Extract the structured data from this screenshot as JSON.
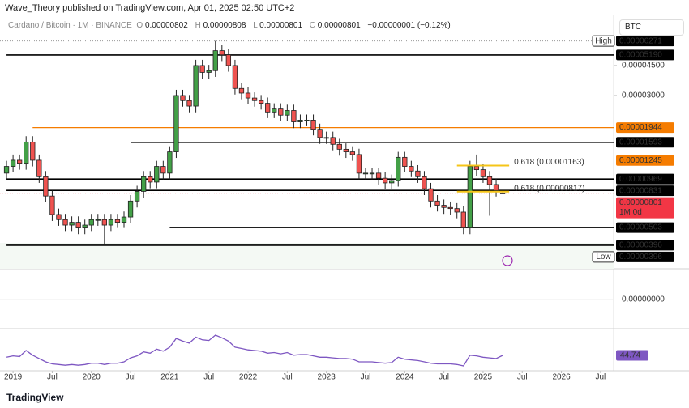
{
  "header": {
    "published": "Wave_Theory published on TradingView.com, Apr 01, 2025 02:50 UTC+2",
    "symbol_box": "BTC",
    "brand": "TradingView"
  },
  "chart_data": {
    "type": "candlestick",
    "legend": {
      "symbol": "Cardano / Bitcoin · 1M · BINANCE",
      "change": "−0.00000001 (−0.12%)"
    },
    "x": [
      "2018-12",
      "2019-01",
      "2019-02",
      "2019-03",
      "2019-04",
      "2019-05",
      "2019-06",
      "2019-07",
      "2019-08",
      "2019-09",
      "2019-10",
      "2019-11",
      "2019-12",
      "2020-01",
      "2020-02",
      "2020-03",
      "2020-04",
      "2020-05",
      "2020-06",
      "2020-07",
      "2020-08",
      "2020-09",
      "2020-10",
      "2020-11",
      "2020-12",
      "2021-01",
      "2021-02",
      "2021-03",
      "2021-04",
      "2021-05",
      "2021-06",
      "2021-07",
      "2021-08",
      "2021-09",
      "2021-10",
      "2021-11",
      "2021-12",
      "2022-01",
      "2022-02",
      "2022-03",
      "2022-04",
      "2022-05",
      "2022-06",
      "2022-07",
      "2022-08",
      "2022-09",
      "2022-10",
      "2022-11",
      "2022-12",
      "2023-01",
      "2023-02",
      "2023-03",
      "2023-04",
      "2023-05",
      "2023-06",
      "2023-07",
      "2023-08",
      "2023-09",
      "2023-10",
      "2023-11",
      "2023-12",
      "2024-01",
      "2024-02",
      "2024-03",
      "2024-04",
      "2024-05",
      "2024-06",
      "2024-07",
      "2024-08",
      "2024-09",
      "2024-10",
      "2024-11",
      "2024-12",
      "2025-01",
      "2025-02",
      "2025-03",
      "2025-04"
    ],
    "open": [
      1.05e-05,
      1.15e-05,
      1.25e-05,
      1.2e-05,
      1.6e-05,
      1.25e-05,
      1e-05,
      7.7e-06,
      6e-06,
      5.6e-06,
      5.2e-06,
      5.4e-06,
      5e-06,
      5.2e-06,
      5.6e-06,
      5.6e-06,
      5.2e-06,
      5.6e-06,
      5.4e-06,
      5.8e-06,
      7.2e-06,
      8.2e-06,
      1e-05,
      9.3e-06,
      1.15e-05,
      1.05e-05,
      1.4e-05,
      3e-05,
      2.8e-05,
      2.6e-05,
      4.5e-05,
      4.1e-05,
      4.2e-05,
      5.5e-05,
      5.2e-05,
      4.5e-05,
      3.3e-05,
      3.1e-05,
      2.9e-05,
      2.8e-05,
      2.7e-05,
      2.4e-05,
      2.5e-05,
      2.3e-05,
      2.45e-05,
      2.1e-05,
      2.15e-05,
      2.15e-05,
      1.9e-05,
      1.7e-05,
      1.7e-05,
      1.55e-05,
      1.45e-05,
      1.4e-05,
      1.35e-05,
      1.05e-05,
      1.05e-05,
      1.05e-05,
      9.8e-06,
      9.2e-06,
      9.5e-06,
      1.3e-05,
      1.15e-05,
      1.08e-05,
      1e-05,
      8.5e-06,
      7.2e-06,
      6.8e-06,
      6.6e-06,
      6.5e-06,
      6.2e-06,
      5e-06,
      1.15e-05,
      1.1e-05,
      1e-05,
      9e-06,
      8.02e-06
    ],
    "high": [
      1.24e-05,
      1.35e-05,
      1.35e-05,
      1.73e-05,
      1.73e-05,
      1.35e-05,
      1.08e-05,
      8.3e-06,
      6.5e-06,
      6.05e-06,
      5.85e-06,
      5.85e-06,
      5.6e-06,
      6.05e-06,
      6.05e-06,
      6.05e-06,
      6.05e-06,
      6.05e-06,
      6.25e-06,
      7.8e-06,
      8.85e-06,
      1.08e-05,
      1.08e-05,
      1.24e-05,
      1.24e-05,
      1.51e-05,
      3.24e-05,
      3.24e-05,
      3.02e-05,
      4.86e-05,
      4.86e-05,
      4.54e-05,
      6.271e-05,
      5.94e-05,
      5.62e-05,
      4.86e-05,
      3.56e-05,
      3.35e-05,
      3.13e-05,
      3.02e-05,
      2.92e-05,
      2.7e-05,
      2.7e-05,
      2.65e-05,
      2.65e-05,
      2.32e-05,
      2.32e-05,
      2.32e-05,
      2.05e-05,
      1.84e-05,
      1.84e-05,
      1.67e-05,
      1.57e-05,
      1.51e-05,
      1.46e-05,
      1.13e-05,
      1.13e-05,
      1.13e-05,
      1.06e-05,
      1.03e-05,
      1.4e-05,
      1.4e-05,
      1.24e-05,
      1.17e-05,
      1.08e-05,
      9.2e-06,
      7.8e-06,
      7.35e-06,
      7.15e-06,
      7e-06,
      6.7e-06,
      1.24e-05,
      1.35e-05,
      1.19e-05,
      1.08e-05,
      9.7e-06,
      8.08e-06
    ],
    "low": [
      9.7e-06,
      1.06e-05,
      1.1e-05,
      1.1e-05,
      1.15e-05,
      9.2e-06,
      7.1e-06,
      5.5e-06,
      5.15e-06,
      4.8e-06,
      4.8e-06,
      4.6e-06,
      4.6e-06,
      4.8e-06,
      5.15e-06,
      3.96e-06,
      4.8e-06,
      5e-06,
      5e-06,
      5.35e-06,
      6.6e-06,
      7.55e-06,
      8.55e-06,
      8.55e-06,
      9.65e-06,
      9.65e-06,
      1.29e-05,
      2.58e-05,
      2.39e-05,
      2.39e-05,
      3.77e-05,
      3.77e-05,
      3.86e-05,
      4.78e-05,
      4.14e-05,
      3.04e-05,
      2.85e-05,
      2.67e-05,
      2.58e-05,
      2.48e-05,
      2.21e-05,
      2.21e-05,
      2.12e-05,
      2.12e-05,
      1.93e-05,
      1.93e-05,
      1.98e-05,
      1.75e-05,
      1.56e-05,
      1.56e-05,
      1.43e-05,
      1.33e-05,
      1.29e-05,
      1.24e-05,
      9.65e-06,
      9.65e-06,
      9.65e-06,
      9e-06,
      8.45e-06,
      8.45e-06,
      8.75e-06,
      1.06e-05,
      9.95e-06,
      9.2e-06,
      7.8e-06,
      6.6e-06,
      6.25e-06,
      6.05e-06,
      6e-06,
      5.7e-06,
      4.6e-06,
      4.6e-06,
      1.01e-05,
      9.2e-06,
      5.9e-06,
      7.65e-06,
      8.01e-06
    ],
    "close": [
      1.15e-05,
      1.25e-05,
      1.2e-05,
      1.6e-05,
      1.25e-05,
      1e-05,
      7.7e-06,
      6e-06,
      5.6e-06,
      5.2e-06,
      5.4e-06,
      5e-06,
      5.2e-06,
      5.6e-06,
      5.6e-06,
      5.2e-06,
      5.6e-06,
      5.4e-06,
      5.8e-06,
      7.2e-06,
      8.2e-06,
      1e-05,
      9.3e-06,
      1.15e-05,
      1.05e-05,
      1.4e-05,
      3e-05,
      2.8e-05,
      2.6e-05,
      4.5e-05,
      4.1e-05,
      4.2e-05,
      5.5e-05,
      5.2e-05,
      4.5e-05,
      3.3e-05,
      3.1e-05,
      2.9e-05,
      2.8e-05,
      2.7e-05,
      2.4e-05,
      2.5e-05,
      2.3e-05,
      2.45e-05,
      2.1e-05,
      2.15e-05,
      2.15e-05,
      1.9e-05,
      1.7e-05,
      1.7e-05,
      1.55e-05,
      1.45e-05,
      1.4e-05,
      1.35e-05,
      1.05e-05,
      1.05e-05,
      1.05e-05,
      9.8e-06,
      9.2e-06,
      9.5e-06,
      1.3e-05,
      1.15e-05,
      1.08e-05,
      1e-05,
      8.5e-06,
      7.2e-06,
      6.8e-06,
      6.6e-06,
      6.5e-06,
      6.2e-06,
      5e-06,
      1.15e-05,
      1.1e-05,
      1e-05,
      9e-06,
      8.3e-06,
      8.01e-06
    ],
    "up_color": "#43a047",
    "down_color": "#ef5350",
    "log_scale": true,
    "ylim": [
      2.88e-06,
      8.58e-05
    ],
    "xlim": [
      "2018-11",
      "2026-09"
    ],
    "yticks": [
      {
        "value": 4.5e-05,
        "label": "0.00004500"
      },
      {
        "value": 3e-05,
        "label": "0.00003000"
      }
    ],
    "xticks": [
      {
        "value": "2019-01",
        "label": "2019"
      },
      {
        "value": "2019-07",
        "label": "Jul"
      },
      {
        "value": "2020-01",
        "label": "2020"
      },
      {
        "value": "2020-07",
        "label": "Jul"
      },
      {
        "value": "2021-01",
        "label": "2021"
      },
      {
        "value": "2021-07",
        "label": "Jul"
      },
      {
        "value": "2022-01",
        "label": "2022"
      },
      {
        "value": "2022-07",
        "label": "Jul"
      },
      {
        "value": "2023-01",
        "label": "2023"
      },
      {
        "value": "2023-07",
        "label": "Jul"
      },
      {
        "value": "2024-01",
        "label": "2024"
      },
      {
        "value": "2024-07",
        "label": "Jul"
      },
      {
        "value": "2025-01",
        "label": "2025"
      },
      {
        "value": "2025-07",
        "label": "Jul"
      },
      {
        "value": "2026-01",
        "label": "2026"
      },
      {
        "value": "2026-07",
        "label": "Jul"
      }
    ],
    "high_label": "High",
    "low_label": "Low",
    "countdown": "1M 0d",
    "levels": [
      {
        "value": 5.19e-05,
        "label": "0.00005190",
        "color": "#000000",
        "from": "2018-12"
      },
      {
        "value": 1.944e-05,
        "label": "0.00001944",
        "color": "#f57c00",
        "from": "2019-04"
      },
      {
        "value": 1.593e-05,
        "label": "0.00001593",
        "color": "#000000",
        "from": "2020-07"
      },
      {
        "value": 9.69e-06,
        "label": "0.00000969",
        "color": "#000000",
        "from": "2018-12"
      },
      {
        "value": 8.31e-06,
        "label": "0.00000831",
        "color": "#000000",
        "from": "2018-12"
      },
      {
        "value": 5.03e-06,
        "label": "0.00000503",
        "color": "#000000",
        "from": "2021-01"
      },
      {
        "value": 3.96e-06,
        "label": "0.00000396",
        "color": "#000000",
        "from": "2018-12"
      }
    ],
    "price_labels": [
      {
        "value": 1.245e-05,
        "label": "0.00001245",
        "color": "#f57c00"
      }
    ],
    "fib": [
      {
        "value": 1.163e-05,
        "label": "0.618 (0.00001163)",
        "from": "2024-09",
        "to": "2025-05",
        "color": "#f5c518"
      },
      {
        "value": 8.17e-06,
        "label": "0.618 (0.00000817)",
        "from": "2024-09",
        "to": "2025-05",
        "color": "#f5c518"
      }
    ],
    "macd_zero": {
      "value": 0,
      "label": "0.00000000"
    },
    "rsi": [
      42,
      44,
      43,
      52,
      45,
      40,
      35,
      32,
      31,
      30,
      31,
      30,
      31,
      33,
      33,
      31,
      33,
      33,
      35,
      41,
      44,
      50,
      48,
      54,
      51,
      57,
      70,
      66,
      63,
      72,
      68,
      67,
      75,
      71,
      66,
      57,
      55,
      53,
      52,
      51,
      48,
      49,
      47,
      49,
      45,
      46,
      46,
      44,
      42,
      42,
      41,
      40,
      40,
      39,
      35,
      35,
      35,
      34,
      33,
      34,
      42,
      39,
      38,
      37,
      35,
      33,
      32,
      32,
      32,
      31,
      29,
      45,
      44,
      42,
      41,
      40,
      44.74
    ],
    "rsi_color": "#7e57c2"
  }
}
